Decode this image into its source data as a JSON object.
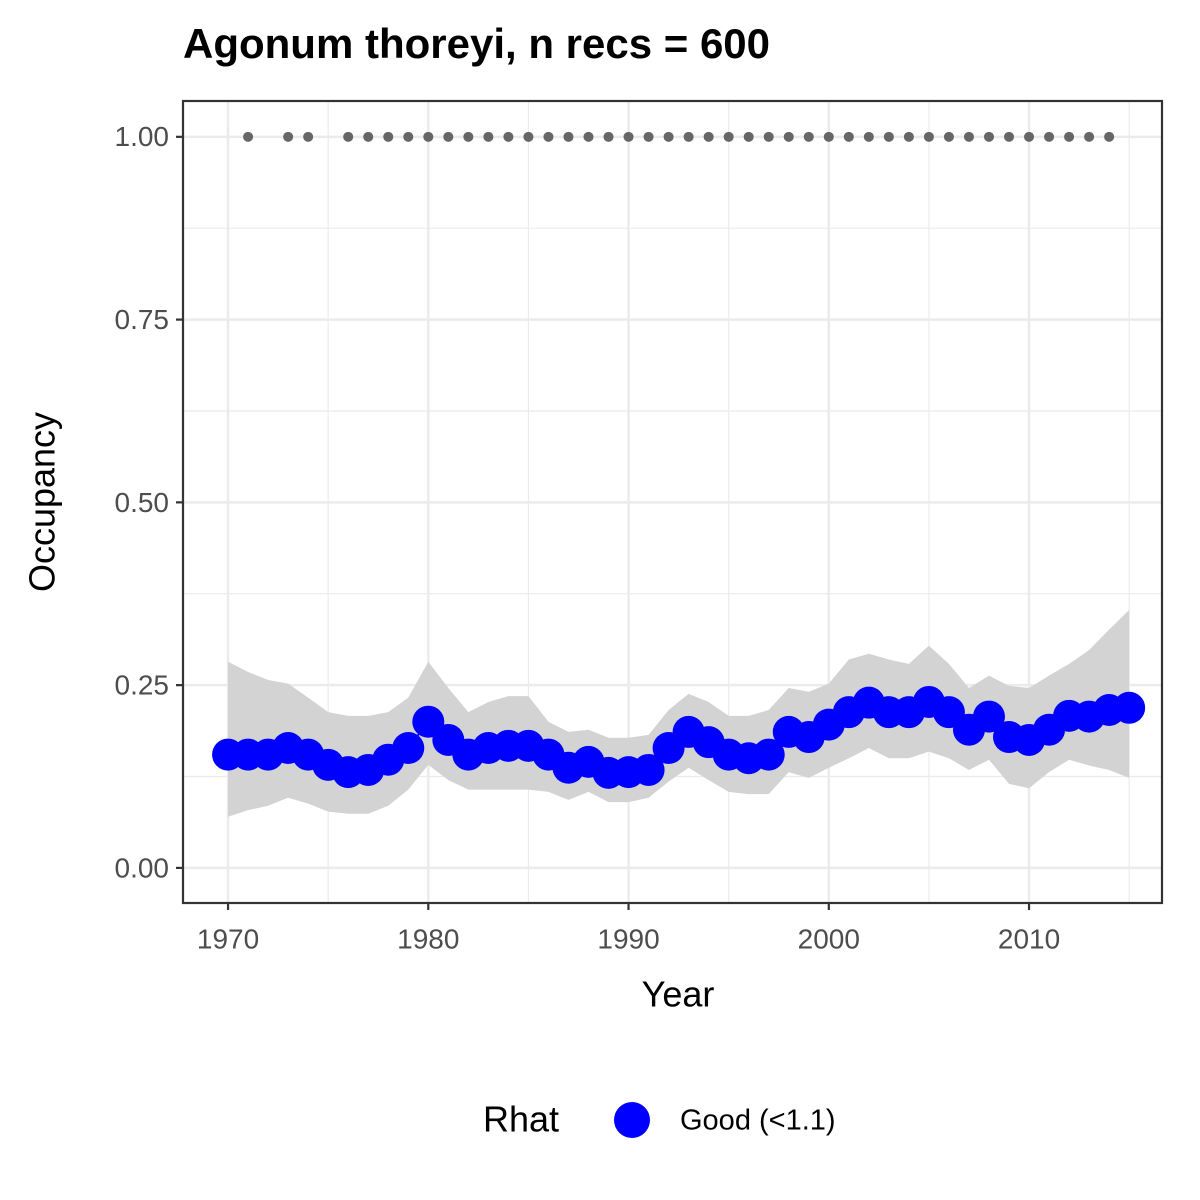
{
  "chart_data": {
    "type": "line",
    "title": "Agonum thoreyi, n recs = 600",
    "x_label": "Year",
    "y_label": "Occupancy",
    "x": [
      1970,
      1971,
      1972,
      1973,
      1974,
      1975,
      1976,
      1977,
      1978,
      1979,
      1980,
      1981,
      1982,
      1983,
      1984,
      1985,
      1986,
      1987,
      1988,
      1989,
      1990,
      1991,
      1992,
      1993,
      1994,
      1995,
      1996,
      1997,
      1998,
      1999,
      2000,
      2001,
      2002,
      2003,
      2004,
      2005,
      2006,
      2007,
      2008,
      2009,
      2010,
      2011,
      2012,
      2013,
      2014,
      2015
    ],
    "series": [
      {
        "name": "Good (<1.1)",
        "color": "#0000ff",
        "values": [
          0.155,
          0.155,
          0.155,
          0.164,
          0.155,
          0.141,
          0.131,
          0.134,
          0.148,
          0.164,
          0.2,
          0.175,
          0.155,
          0.164,
          0.167,
          0.167,
          0.155,
          0.137,
          0.145,
          0.13,
          0.131,
          0.134,
          0.164,
          0.186,
          0.172,
          0.155,
          0.15,
          0.155,
          0.186,
          0.179,
          0.196,
          0.213,
          0.226,
          0.213,
          0.213,
          0.227,
          0.213,
          0.189,
          0.207,
          0.179,
          0.175,
          0.189,
          0.208,
          0.207,
          0.216,
          0.219
        ]
      }
    ],
    "ribbon": {
      "color": "#d3d3d3",
      "lower": [
        0.07,
        0.079,
        0.085,
        0.096,
        0.088,
        0.077,
        0.074,
        0.074,
        0.085,
        0.107,
        0.141,
        0.12,
        0.107,
        0.107,
        0.107,
        0.107,
        0.104,
        0.093,
        0.104,
        0.09,
        0.09,
        0.096,
        0.118,
        0.137,
        0.12,
        0.104,
        0.101,
        0.101,
        0.131,
        0.123,
        0.137,
        0.15,
        0.164,
        0.15,
        0.15,
        0.159,
        0.15,
        0.134,
        0.148,
        0.115,
        0.109,
        0.131,
        0.148,
        0.14,
        0.134,
        0.123
      ],
      "upper": [
        0.282,
        0.268,
        0.257,
        0.252,
        0.233,
        0.213,
        0.208,
        0.208,
        0.213,
        0.233,
        0.282,
        0.246,
        0.213,
        0.227,
        0.235,
        0.235,
        0.2,
        0.186,
        0.189,
        0.178,
        0.178,
        0.182,
        0.216,
        0.238,
        0.227,
        0.208,
        0.208,
        0.216,
        0.246,
        0.241,
        0.252,
        0.285,
        0.293,
        0.285,
        0.279,
        0.304,
        0.279,
        0.246,
        0.263,
        0.249,
        0.246,
        0.263,
        0.279,
        0.298,
        0.326,
        0.353
      ]
    },
    "records": {
      "color": "#666666",
      "x": [
        1971,
        1973,
        1974,
        1976,
        1977,
        1978,
        1979,
        1980,
        1981,
        1982,
        1983,
        1984,
        1985,
        1986,
        1987,
        1988,
        1989,
        1990,
        1991,
        1992,
        1993,
        1994,
        1995,
        1996,
        1997,
        1998,
        1999,
        2000,
        2001,
        2002,
        2003,
        2004,
        2005,
        2006,
        2007,
        2008,
        2009,
        2010,
        2011,
        2012,
        2013,
        2014
      ],
      "values": [
        1,
        1,
        1,
        1,
        1,
        1,
        1,
        1,
        1,
        1,
        1,
        1,
        1,
        1,
        1,
        1,
        1,
        1,
        1,
        1,
        1,
        1,
        1,
        1,
        1,
        1,
        1,
        1,
        1,
        1,
        1,
        1,
        1,
        1,
        1,
        1,
        1,
        1,
        1,
        1,
        1,
        1
      ]
    },
    "legend_title": "Rhat",
    "legend_position": "bottom",
    "xlim": [
      1967.75,
      2016.64
    ],
    "ylim": [
      -0.048,
      1.049
    ],
    "xticks": [
      1970,
      1980,
      1990,
      2000,
      2010
    ],
    "x_minor_ticks": [
      1975,
      1985,
      1995,
      2005,
      2015
    ],
    "yticks": [
      {
        "value": 0,
        "label": "0.00"
      },
      {
        "value": 0.25,
        "label": "0.25"
      },
      {
        "value": 0.5,
        "label": "0.50"
      },
      {
        "value": 0.75,
        "label": "0.75"
      },
      {
        "value": 1,
        "label": "1.00"
      }
    ],
    "y_minor_ticks": [
      0.125,
      0.375,
      0.625,
      0.875
    ],
    "grid": true
  }
}
